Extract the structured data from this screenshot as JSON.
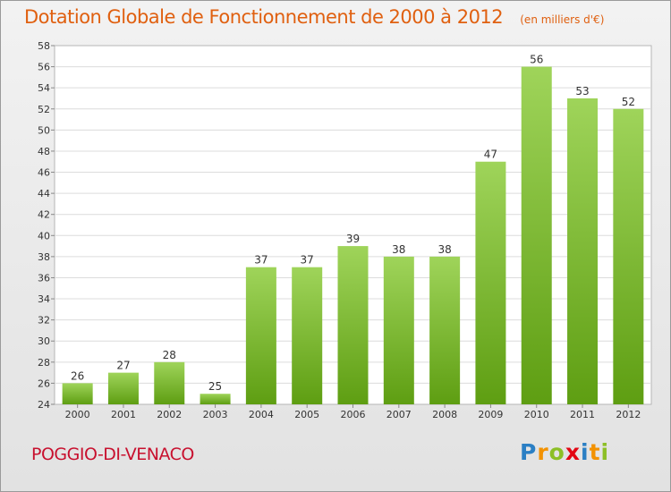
{
  "title": "Dotation Globale de Fonctionnement de 2000 à 2012",
  "unit": "(en milliers d'€)",
  "place": "POGGIO-DI-VENACO",
  "brand": {
    "text": "Proxiti",
    "letters": [
      {
        "ch": "P",
        "color": "#2b7fc4"
      },
      {
        "ch": "r",
        "color": "#f39200"
      },
      {
        "ch": "o",
        "color": "#8cbf26"
      },
      {
        "ch": "x",
        "color": "#e30613"
      },
      {
        "ch": "i",
        "color": "#2b7fc4"
      },
      {
        "ch": "t",
        "color": "#f39200"
      },
      {
        "ch": "i",
        "color": "#8cbf26"
      }
    ]
  },
  "colors": {
    "bar_top": "#9fd45a",
    "bar_bottom": "#5e9e12",
    "title": "#e06010",
    "place": "#c8102e"
  },
  "chart_data": {
    "type": "bar",
    "categories": [
      "2000",
      "2001",
      "2002",
      "2003",
      "2004",
      "2005",
      "2006",
      "2007",
      "2008",
      "2009",
      "2010",
      "2011",
      "2012"
    ],
    "values": [
      26,
      27,
      28,
      25,
      37,
      37,
      39,
      38,
      38,
      47,
      56,
      53,
      52
    ],
    "ylim": [
      24,
      58
    ],
    "yticks": [
      24,
      26,
      28,
      30,
      32,
      34,
      36,
      38,
      40,
      42,
      44,
      46,
      48,
      50,
      52,
      54,
      56,
      58
    ],
    "grid": true
  }
}
